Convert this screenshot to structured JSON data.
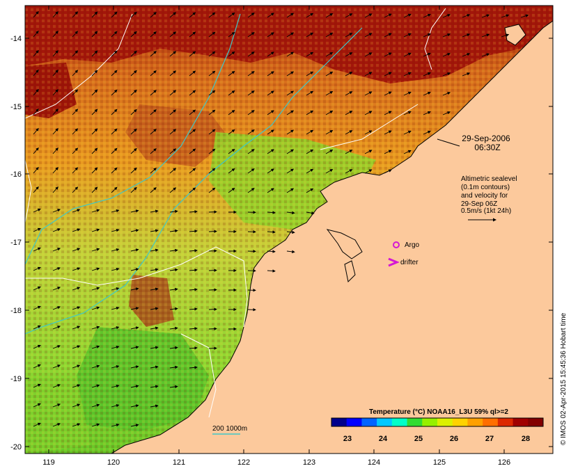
{
  "map": {
    "lon_ticks": [
      "119",
      "120",
      "121",
      "122",
      "123",
      "124",
      "125",
      "126"
    ],
    "lat_ticks": [
      "-14",
      "-15",
      "-16",
      "-17",
      "-18",
      "-19",
      "-20"
    ]
  },
  "timestamp": {
    "date": "29-Sep-2006",
    "time": "06:30Z"
  },
  "altimetry_note": {
    "lines": [
      "Altimetric sealevel",
      "(0.1m contours)",
      "and velocity for",
      "29-Sep 06Z",
      "0.5m/s (1kt 24h)"
    ]
  },
  "legend": {
    "argo_label": "Argo",
    "drifter_label": "drifter",
    "argo_color": "#d418d4",
    "drifter_color": "#d418d4"
  },
  "isobath": {
    "label": "200  1000m",
    "color": "#3ec8c8"
  },
  "colorbar": {
    "title": "Temperature (°C) NOAA16_L3U 59% ql>=2",
    "ticks": [
      "23",
      "24",
      "25",
      "26",
      "27",
      "28"
    ],
    "colors": [
      "#00008c",
      "#0000ff",
      "#0064ff",
      "#00c8ff",
      "#00ffc8",
      "#32dc32",
      "#96f000",
      "#dcf000",
      "#ffd200",
      "#ffa000",
      "#ff6e00",
      "#dc2800",
      "#a00000",
      "#820000"
    ]
  },
  "credit": "© IMOS 02-Apr-2015 15:45:36 Hobart time",
  "colors": {
    "land": "#fcc99c",
    "ocean_warm": "#c8501e",
    "ocean_hot": "#9a1206",
    "ocean_mid": "#e89a1a",
    "ocean_cool": "#8fd82a"
  }
}
